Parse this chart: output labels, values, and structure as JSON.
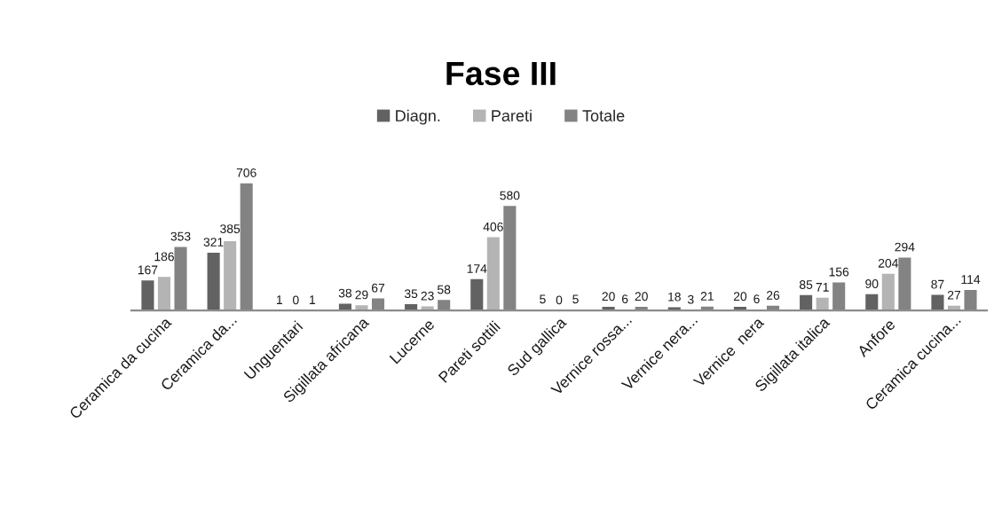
{
  "chart_data": {
    "type": "bar",
    "title": "Fase III",
    "categories": [
      "Ceramica da cucina",
      "Ceramica da...",
      "Unguentari",
      "Sigillata africana",
      "Lucerne",
      "Pareti sottili",
      "Sud gallica",
      "Vernice rossa...",
      "Vernice nera...",
      "Vernice  nera",
      "Sigillata italica",
      "Anfore",
      "Ceramica cucina..."
    ],
    "series": [
      {
        "name": "Diagn.",
        "color": "#626262",
        "values": [
          167,
          321,
          1,
          38,
          35,
          174,
          5,
          20,
          18,
          20,
          85,
          90,
          87
        ]
      },
      {
        "name": "Pareti",
        "color": "#b4b4b4",
        "values": [
          186,
          385,
          0,
          29,
          23,
          406,
          0,
          6,
          3,
          6,
          71,
          204,
          27
        ]
      },
      {
        "name": "Totale",
        "color": "#838383",
        "values": [
          353,
          706,
          1,
          67,
          58,
          580,
          5,
          20,
          21,
          26,
          156,
          294,
          114
        ]
      }
    ],
    "data_labels": true,
    "legend": "top",
    "grid": false,
    "tick_labels": "x"
  }
}
